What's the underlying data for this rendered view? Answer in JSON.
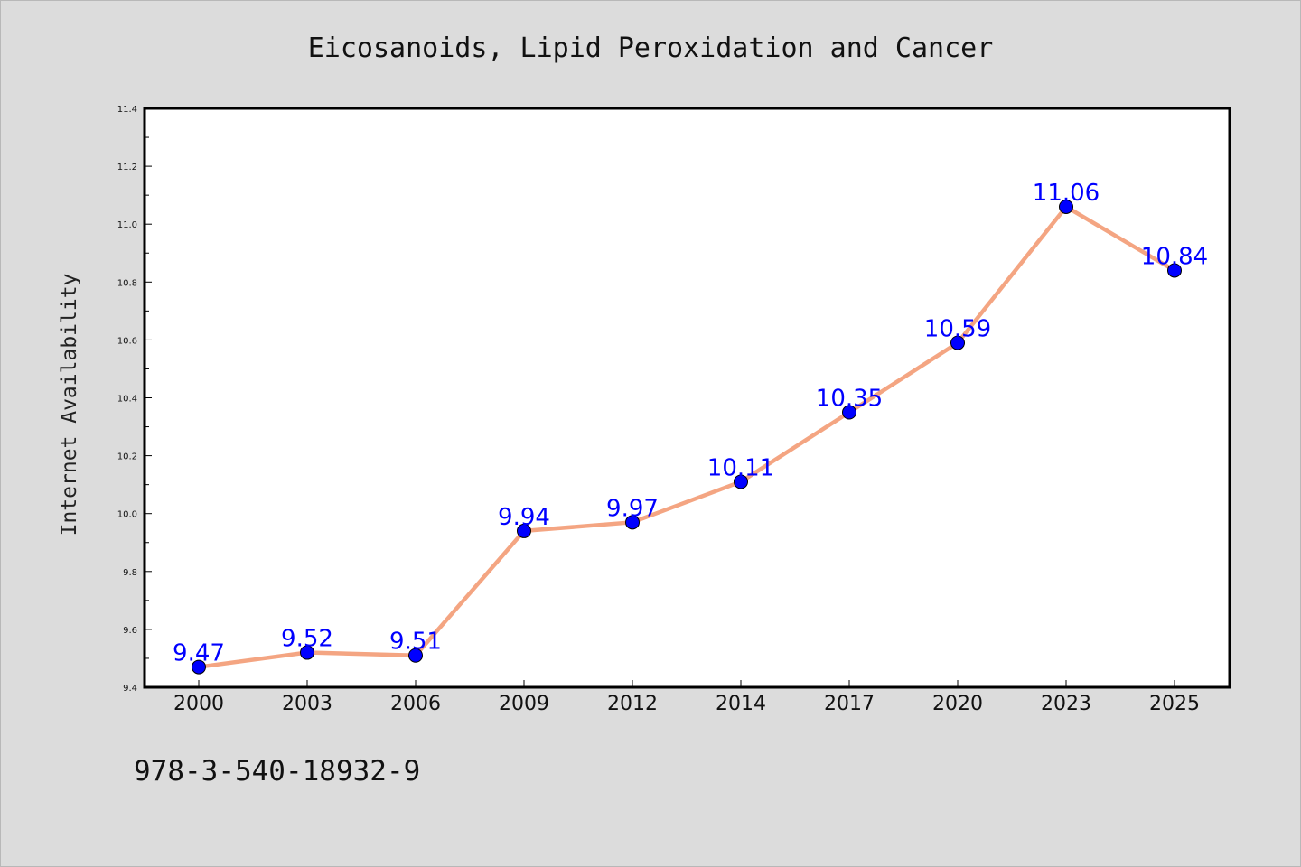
{
  "chart_data": {
    "type": "line",
    "title": "Eicosanoids, Lipid Peroxidation and Cancer",
    "xlabel": "",
    "ylabel": "Internet Availability",
    "categories": [
      "2000",
      "2003",
      "2006",
      "2009",
      "2012",
      "2014",
      "2017",
      "2020",
      "2023",
      "2025"
    ],
    "series": [
      {
        "values": [
          9.47,
          9.52,
          9.51,
          9.94,
          9.97,
          10.11,
          10.35,
          10.59,
          11.06,
          10.84
        ],
        "labels": [
          "9.47",
          "9.52",
          "9.51",
          "9.94",
          "9.97",
          "10.11",
          "10.35",
          "10.59",
          "11.06",
          "10.84"
        ]
      }
    ],
    "ylim": [
      9.4,
      11.4
    ],
    "yticks": [
      "9.4",
      "9.6",
      "9.8",
      "10.0",
      "10.2",
      "10.4",
      "10.6",
      "10.8",
      "11.0",
      "11.2",
      "11.4"
    ],
    "grid": false,
    "line_color": "#f4a582",
    "marker_color": "#0000ff",
    "label_color": "#0000ff"
  },
  "footnote": "978-3-540-18932-9"
}
